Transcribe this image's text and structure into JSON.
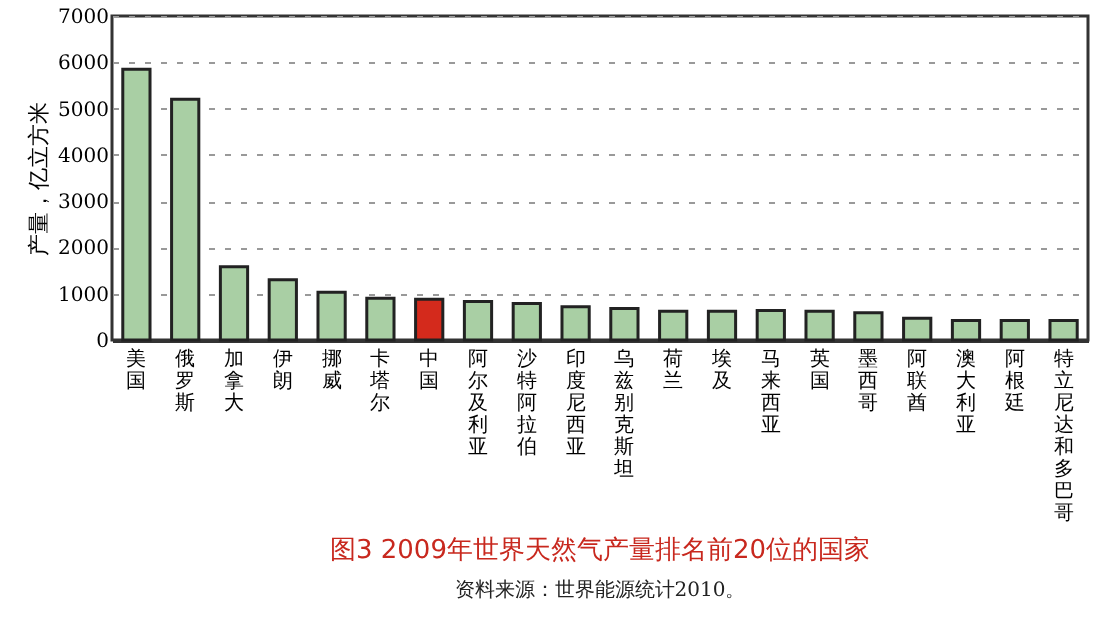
{
  "chart_data": {
    "type": "bar",
    "title": "图3  2009年世界天然气产量排名前20位的国家",
    "ylabel": "产量，亿立方米",
    "annotations": [
      "资料来源：世界能源统计2010。"
    ],
    "categories": [
      "美国",
      "俄罗斯",
      "加拿大",
      "伊朗",
      "挪威",
      "卡塔尔",
      "中国",
      "阿尔及利亚",
      "沙特阿拉伯",
      "印度尼西亚",
      "乌兹别克斯坦",
      "荷兰",
      "埃及",
      "马来西亚",
      "英国",
      "墨西哥",
      "阿联酋",
      "澳大利亚",
      "阿根廷",
      "特立尼达和多巴哥"
    ],
    "values": [
      5850,
      5200,
      1580,
      1300,
      1030,
      900,
      880,
      830,
      790,
      720,
      680,
      620,
      620,
      640,
      620,
      590,
      470,
      420,
      420,
      420
    ],
    "colors": [
      "#a9cfa4",
      "#a9cfa4",
      "#a9cfa4",
      "#a9cfa4",
      "#a9cfa4",
      "#a9cfa4",
      "#d42a1c",
      "#a9cfa4",
      "#a9cfa4",
      "#a9cfa4",
      "#a9cfa4",
      "#a9cfa4",
      "#a9cfa4",
      "#a9cfa4",
      "#a9cfa4",
      "#a9cfa4",
      "#a9cfa4",
      "#a9cfa4",
      "#a9cfa4",
      "#a9cfa4"
    ],
    "ylim": [
      0,
      7000
    ],
    "yticks": [
      0,
      1000,
      2000,
      3000,
      4000,
      5000,
      6000,
      7000
    ],
    "grid": "y"
  }
}
